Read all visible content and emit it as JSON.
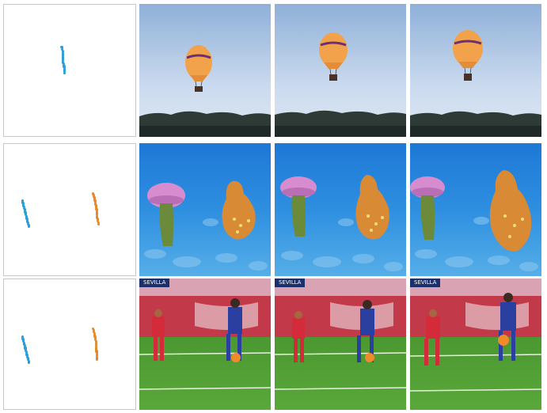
{
  "rows": [
    {
      "name": "hot-air-balloon",
      "trajectories": [
        {
          "color": "#2a9fd8",
          "points": [
            [
              0.44,
              0.32
            ],
            [
              0.45,
              0.36
            ],
            [
              0.45,
              0.4
            ],
            [
              0.45,
              0.44
            ],
            [
              0.46,
              0.48
            ],
            [
              0.46,
              0.52
            ]
          ]
        }
      ],
      "frames": 3
    },
    {
      "name": "jellyfish-and-octopus",
      "trajectories": [
        {
          "color": "#2a9fd8",
          "points": [
            [
              0.14,
              0.43
            ],
            [
              0.15,
              0.47
            ],
            [
              0.16,
              0.51
            ],
            [
              0.17,
              0.55
            ],
            [
              0.18,
              0.59
            ],
            [
              0.19,
              0.63
            ]
          ]
        },
        {
          "color": "#e58a2a",
          "points": [
            [
              0.68,
              0.38
            ],
            [
              0.69,
              0.42
            ],
            [
              0.7,
              0.47
            ],
            [
              0.71,
              0.52
            ],
            [
              0.71,
              0.56
            ],
            [
              0.72,
              0.61
            ]
          ]
        }
      ],
      "frames": 3
    },
    {
      "name": "soccer-players",
      "trajectories": [
        {
          "color": "#2a9fd8",
          "points": [
            [
              0.14,
              0.44
            ],
            [
              0.15,
              0.48
            ],
            [
              0.16,
              0.52
            ],
            [
              0.17,
              0.56
            ],
            [
              0.18,
              0.6
            ],
            [
              0.19,
              0.64
            ]
          ]
        },
        {
          "color": "#e58a2a",
          "points": [
            [
              0.68,
              0.38
            ],
            [
              0.69,
              0.43
            ],
            [
              0.7,
              0.48
            ],
            [
              0.7,
              0.53
            ],
            [
              0.71,
              0.58
            ],
            [
              0.71,
              0.62
            ]
          ]
        }
      ],
      "frames": 3,
      "scoreboard": "SEVILLA"
    }
  ]
}
